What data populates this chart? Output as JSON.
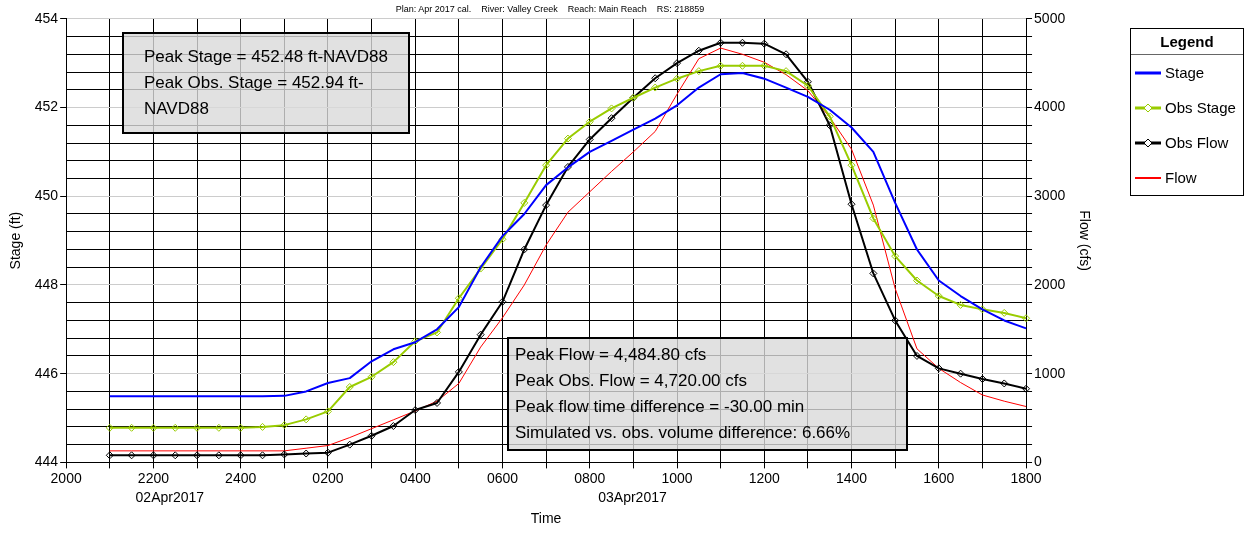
{
  "chart_data": {
    "type": "line",
    "title": "Plan: Apr 2017 cal.    River: Valley Creek    Reach: Main Reach    RS: 218859",
    "xlabel": "Time",
    "ylabel": "Stage (ft)",
    "y2label": "Flow (cfs)",
    "legend_title": "Legend",
    "legend": "right",
    "grid": true,
    "categories": [
      "2000",
      null,
      null,
      null,
      "2200",
      null,
      null,
      null,
      "2400",
      null,
      null,
      null,
      "0200",
      null,
      null,
      null,
      "0400",
      null,
      null,
      null,
      "0600",
      null,
      null,
      null,
      "0800",
      null,
      null,
      null,
      "1000",
      null,
      null,
      null,
      "1200",
      null,
      null,
      null,
      "1400",
      null,
      null,
      null,
      "1600",
      null,
      null,
      null,
      "1800"
    ],
    "ylim": [
      444,
      454
    ],
    "yticks": [
      444,
      446,
      448,
      450,
      452,
      454
    ],
    "y2lim": [
      0,
      5000
    ],
    "y2ticks": [
      0,
      {
        "value": 200,
        "label": null
      },
      {
        "value": 400,
        "label": null
      },
      {
        "value": 600,
        "label": null
      },
      {
        "value": 800,
        "label": null
      },
      1000,
      {
        "value": 1200,
        "label": null
      },
      {
        "value": 1400,
        "label": null
      },
      {
        "value": 1600,
        "label": null
      },
      {
        "value": 1800,
        "label": null
      },
      2000,
      {
        "value": 2200,
        "label": null
      },
      {
        "value": 2400,
        "label": null
      },
      {
        "value": 2600,
        "label": null
      },
      {
        "value": 2800,
        "label": null
      },
      3000,
      {
        "value": 3200,
        "label": null
      },
      {
        "value": 3400,
        "label": null
      },
      {
        "value": 3600,
        "label": null
      },
      {
        "value": 3800,
        "label": null
      },
      4000,
      {
        "value": 4200,
        "label": null
      },
      {
        "value": 4400,
        "label": null
      },
      {
        "value": 4600,
        "label": null
      },
      {
        "value": 4800,
        "label": null
      },
      5000
    ],
    "series": [
      {
        "name": "Stage",
        "color": "#0000ff",
        "marker": "none",
        "line_style": "solid",
        "values": [
          null,
          null,
          445.49,
          445.49,
          445.49,
          445.49,
          445.49,
          445.49,
          445.49,
          445.49,
          445.5,
          445.6,
          445.79,
          445.9,
          446.28,
          446.55,
          446.71,
          447.0,
          447.5,
          448.4,
          449.1,
          449.6,
          450.25,
          450.65,
          451.0,
          451.25,
          451.5,
          451.75,
          452.05,
          452.45,
          452.75,
          452.78,
          452.65,
          452.45,
          452.24,
          451.95,
          451.55,
          451.0,
          449.85,
          448.8,
          448.1,
          447.75,
          447.45,
          447.2,
          447.02
        ]
      },
      {
        "name": "Obs Stage",
        "color": "#99cc00",
        "marker": "diamond",
        "line_style": "solid",
        "values": [
          null,
          null,
          444.78,
          444.78,
          444.78,
          444.78,
          444.78,
          444.78,
          444.78,
          444.8,
          444.84,
          444.97,
          445.15,
          445.7,
          445.93,
          446.26,
          446.73,
          446.93,
          447.7,
          448.37,
          449.03,
          449.85,
          450.7,
          451.3,
          451.68,
          451.98,
          452.22,
          452.45,
          452.65,
          452.82,
          452.94,
          452.94,
          452.94,
          452.82,
          452.49,
          451.8,
          450.7,
          449.5,
          448.65,
          448.1,
          447.75,
          447.55,
          447.45,
          447.37,
          447.25
        ]
      },
      {
        "name": "Obs Flow",
        "color": "#000000",
        "marker": "diamond",
        "line_style": "solid",
        "axis": "y2",
        "values": [
          null,
          null,
          80,
          80,
          80,
          80,
          80,
          80,
          80,
          80,
          90,
          100,
          110,
          200,
          300,
          410,
          590,
          670,
          1020,
          1440,
          1810,
          2400,
          2900,
          3330,
          3640,
          3880,
          4110,
          4330,
          4500,
          4640,
          4730,
          4730,
          4720,
          4600,
          4290,
          3800,
          2910,
          2130,
          1600,
          1200,
          1060,
          1000,
          940,
          890,
          830
        ]
      },
      {
        "name": "Flow",
        "color": "#ff0000",
        "marker": "none",
        "line_style": "solid",
        "axis": "y2",
        "values": [
          null,
          null,
          130,
          130,
          130,
          130,
          130,
          130,
          130,
          130,
          130,
          160,
          190,
          280,
          380,
          480,
          580,
          690,
          890,
          1300,
          1630,
          2000,
          2450,
          2820,
          3050,
          3280,
          3500,
          3730,
          4150,
          4550,
          4670,
          4600,
          4510,
          4370,
          4190,
          3890,
          3530,
          2900,
          1960,
          1280,
          1060,
          900,
          760,
          690,
          630
        ]
      }
    ],
    "annotations": [
      "Peak Stage = 452.48 ft-NAVD88\nPeak Obs. Stage = 452.94 ft-NAVD88",
      "Peak Flow = 4,484.80 cfs\nPeak Obs. Flow = 4,720.00 cfs\nPeak flow time difference = -30.00 min\nSimulated vs. obs. volume difference: 6.66%",
      "02Apr2017",
      "03Apr2017"
    ]
  }
}
